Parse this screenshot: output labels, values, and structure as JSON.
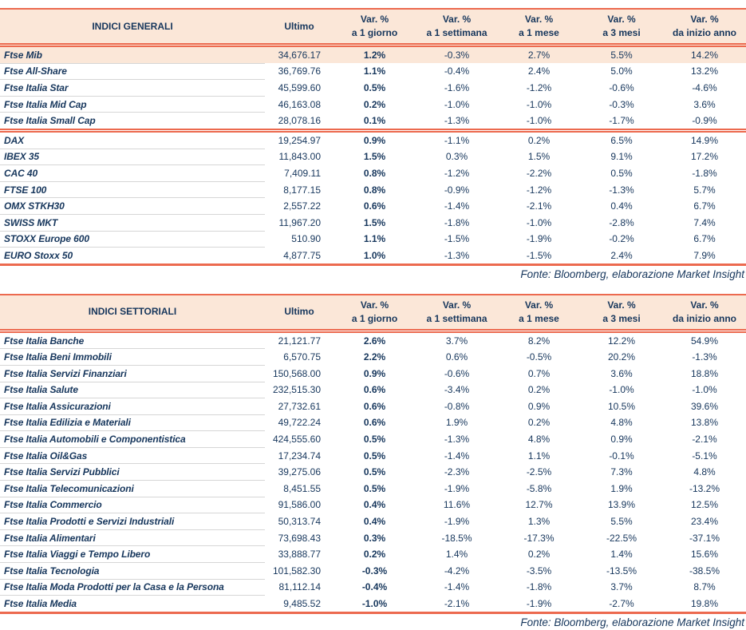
{
  "labels": {
    "ultimo": "Ultimo",
    "var_pct": "Var. %",
    "periods": [
      "a 1 giorno",
      "a 1 settimana",
      "a 1 mese",
      "a 3 mesi",
      "da inizio anno"
    ]
  },
  "colors": {
    "accent": "#EC6A4F",
    "header_bg": "#FBE7D8",
    "text": "#16365C",
    "separator": "#D6D6D6",
    "highlight_row_bg": "#FBE7D8"
  },
  "tables": [
    {
      "title": "INDICI GENERALI",
      "source": "Fonte: Bloomberg, elaborazione Market Insight",
      "groups": [
        {
          "rows": [
            {
              "name": "Ftse Mib",
              "ultimo": "34,676.17",
              "d1": "1.2%",
              "w1": "-0.3%",
              "m1": "2.7%",
              "m3": "5.5%",
              "ytd": "14.2%",
              "highlight": true
            },
            {
              "name": "Ftse All-Share",
              "ultimo": "36,769.76",
              "d1": "1.1%",
              "w1": "-0.4%",
              "m1": "2.4%",
              "m3": "5.0%",
              "ytd": "13.2%"
            },
            {
              "name": "Ftse Italia Star",
              "ultimo": "45,599.60",
              "d1": "0.5%",
              "w1": "-1.6%",
              "m1": "-1.2%",
              "m3": "-0.6%",
              "ytd": "-4.6%"
            },
            {
              "name": "Ftse Italia Mid Cap",
              "ultimo": "46,163.08",
              "d1": "0.2%",
              "w1": "-1.0%",
              "m1": "-1.0%",
              "m3": "-0.3%",
              "ytd": "3.6%"
            },
            {
              "name": "Ftse Italia Small Cap",
              "ultimo": "28,078.16",
              "d1": "0.1%",
              "w1": "-1.3%",
              "m1": "-1.0%",
              "m3": "-1.7%",
              "ytd": "-0.9%"
            }
          ]
        },
        {
          "rows": [
            {
              "name": "DAX",
              "ultimo": "19,254.97",
              "d1": "0.9%",
              "w1": "-1.1%",
              "m1": "0.2%",
              "m3": "6.5%",
              "ytd": "14.9%"
            },
            {
              "name": "IBEX 35",
              "ultimo": "11,843.00",
              "d1": "1.5%",
              "w1": "0.3%",
              "m1": "1.5%",
              "m3": "9.1%",
              "ytd": "17.2%"
            },
            {
              "name": "CAC 40",
              "ultimo": "7,409.11",
              "d1": "0.8%",
              "w1": "-1.2%",
              "m1": "-2.2%",
              "m3": "0.5%",
              "ytd": "-1.8%"
            },
            {
              "name": "FTSE 100",
              "ultimo": "8,177.15",
              "d1": "0.8%",
              "w1": "-0.9%",
              "m1": "-1.2%",
              "m3": "-1.3%",
              "ytd": "5.7%"
            },
            {
              "name": "OMX STKH30",
              "ultimo": "2,557.22",
              "d1": "0.6%",
              "w1": "-1.4%",
              "m1": "-2.1%",
              "m3": "0.4%",
              "ytd": "6.7%"
            },
            {
              "name": "SWISS MKT",
              "ultimo": "11,967.20",
              "d1": "1.5%",
              "w1": "-1.8%",
              "m1": "-1.0%",
              "m3": "-2.8%",
              "ytd": "7.4%"
            },
            {
              "name": "STOXX Europe 600",
              "ultimo": "510.90",
              "d1": "1.1%",
              "w1": "-1.5%",
              "m1": "-1.9%",
              "m3": "-0.2%",
              "ytd": "6.7%"
            },
            {
              "name": "EURO Stoxx 50",
              "ultimo": "4,877.75",
              "d1": "1.0%",
              "w1": "-1.3%",
              "m1": "-1.5%",
              "m3": "2.4%",
              "ytd": "7.9%"
            }
          ]
        }
      ]
    },
    {
      "title": "INDICI SETTORIALI",
      "source": "Fonte: Bloomberg, elaborazione Market Insight",
      "groups": [
        {
          "rows": [
            {
              "name": "Ftse Italia Banche",
              "ultimo": "21,121.77",
              "d1": "2.6%",
              "w1": "3.7%",
              "m1": "8.2%",
              "m3": "12.2%",
              "ytd": "54.9%"
            },
            {
              "name": "Ftse Italia Beni Immobili",
              "ultimo": "6,570.75",
              "d1": "2.2%",
              "w1": "0.6%",
              "m1": "-0.5%",
              "m3": "20.2%",
              "ytd": "-1.3%"
            },
            {
              "name": "Ftse Italia Servizi Finanziari",
              "ultimo": "150,568.00",
              "d1": "0.9%",
              "w1": "-0.6%",
              "m1": "0.7%",
              "m3": "3.6%",
              "ytd": "18.8%"
            },
            {
              "name": "Ftse Italia Salute",
              "ultimo": "232,515.30",
              "d1": "0.6%",
              "w1": "-3.4%",
              "m1": "0.2%",
              "m3": "-1.0%",
              "ytd": "-1.0%"
            },
            {
              "name": "Ftse Italia Assicurazioni",
              "ultimo": "27,732.61",
              "d1": "0.6%",
              "w1": "-0.8%",
              "m1": "0.9%",
              "m3": "10.5%",
              "ytd": "39.6%"
            },
            {
              "name": "Ftse Italia Edilizia e Materiali",
              "ultimo": "49,722.24",
              "d1": "0.6%",
              "w1": "1.9%",
              "m1": "0.2%",
              "m3": "4.8%",
              "ytd": "13.8%"
            },
            {
              "name": "Ftse Italia Automobili e Componentistica",
              "ultimo": "424,555.60",
              "d1": "0.5%",
              "w1": "-1.3%",
              "m1": "4.8%",
              "m3": "0.9%",
              "ytd": "-2.1%"
            },
            {
              "name": "Ftse Italia Oil&Gas",
              "ultimo": "17,234.74",
              "d1": "0.5%",
              "w1": "-1.4%",
              "m1": "1.1%",
              "m3": "-0.1%",
              "ytd": "-5.1%"
            },
            {
              "name": "Ftse Italia Servizi Pubblici",
              "ultimo": "39,275.06",
              "d1": "0.5%",
              "w1": "-2.3%",
              "m1": "-2.5%",
              "m3": "7.3%",
              "ytd": "4.8%"
            },
            {
              "name": "Ftse Italia Telecomunicazioni",
              "ultimo": "8,451.55",
              "d1": "0.5%",
              "w1": "-1.9%",
              "m1": "-5.8%",
              "m3": "1.9%",
              "ytd": "-13.2%"
            },
            {
              "name": "Ftse Italia Commercio",
              "ultimo": "91,586.00",
              "d1": "0.4%",
              "w1": "11.6%",
              "m1": "12.7%",
              "m3": "13.9%",
              "ytd": "12.5%"
            },
            {
              "name": "Ftse Italia Prodotti e Servizi Industriali",
              "ultimo": "50,313.74",
              "d1": "0.4%",
              "w1": "-1.9%",
              "m1": "1.3%",
              "m3": "5.5%",
              "ytd": "23.4%"
            },
            {
              "name": "Ftse Italia Alimentari",
              "ultimo": "73,698.43",
              "d1": "0.3%",
              "w1": "-18.5%",
              "m1": "-17.3%",
              "m3": "-22.5%",
              "ytd": "-37.1%"
            },
            {
              "name": "Ftse Italia Viaggi e Tempo Libero",
              "ultimo": "33,888.77",
              "d1": "0.2%",
              "w1": "1.4%",
              "m1": "0.2%",
              "m3": "1.4%",
              "ytd": "15.6%"
            },
            {
              "name": "Ftse Italia Tecnologia",
              "ultimo": "101,582.30",
              "d1": "-0.3%",
              "w1": "-4.2%",
              "m1": "-3.5%",
              "m3": "-13.5%",
              "ytd": "-38.5%"
            },
            {
              "name": "Ftse Italia Moda Prodotti per la Casa e la Persona",
              "ultimo": "81,112.14",
              "d1": "-0.4%",
              "w1": "-1.4%",
              "m1": "-1.8%",
              "m3": "3.7%",
              "ytd": "8.7%"
            },
            {
              "name": "Ftse Italia Media",
              "ultimo": "9,485.52",
              "d1": "-1.0%",
              "w1": "-2.1%",
              "m1": "-1.9%",
              "m3": "-2.7%",
              "ytd": "19.8%"
            }
          ]
        }
      ]
    }
  ]
}
